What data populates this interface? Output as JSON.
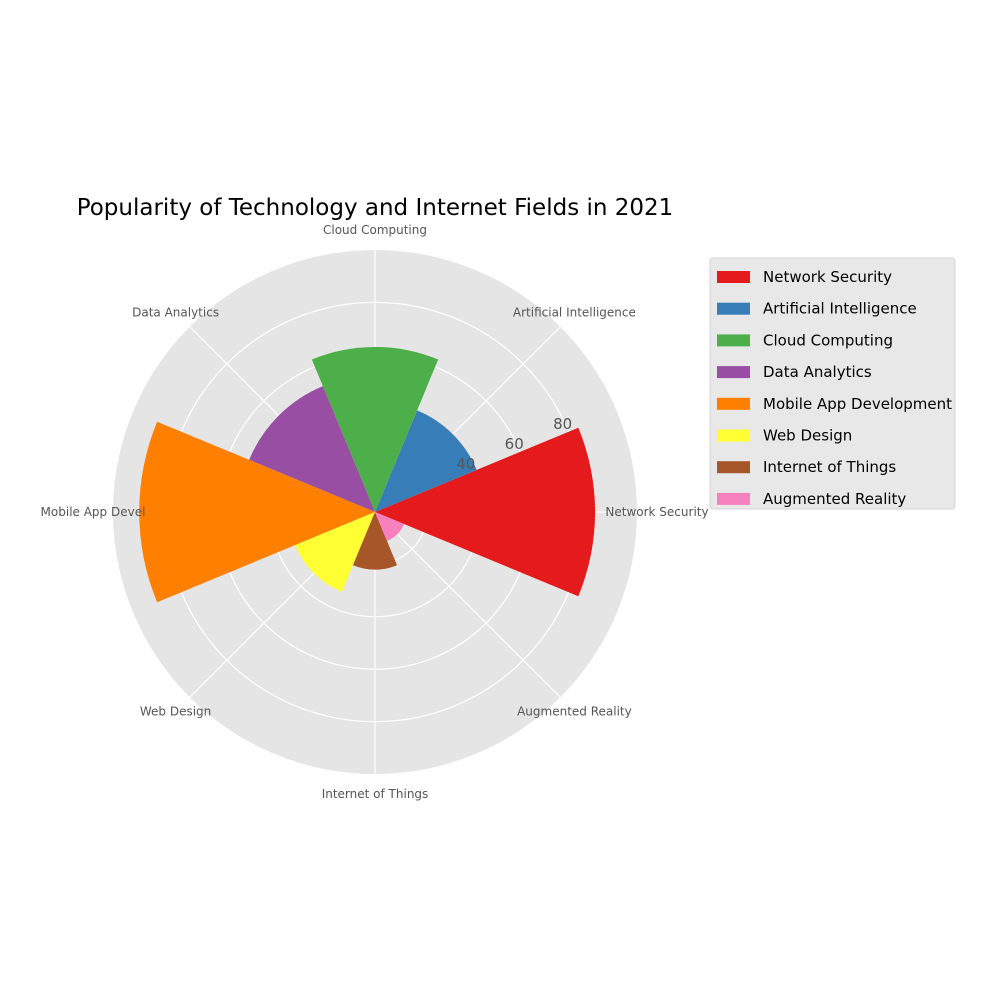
{
  "chart_data": {
    "type": "polar-bar",
    "title": "Popularity of Technology and Internet Fields in 2021",
    "categories": [
      "Network Security",
      "Artificial Intelligence",
      "Cloud Computing",
      "Data Analytics",
      "Mobile App Development",
      "Web Design",
      "Internet of Things",
      "Augmented Reality"
    ],
    "category_labels": [
      "Network Security",
      "Artificial Intelligence",
      "Cloud Computing",
      "Data Analytics",
      "Mobile App Devel",
      "Web Design",
      "Internet of Things",
      "Augmented Reality"
    ],
    "values": [
      84,
      42,
      63,
      52,
      90,
      33,
      22,
      12
    ],
    "colors": [
      "#e41a1c",
      "#377eb8",
      "#4daf4a",
      "#984ea3",
      "#ff7f00",
      "#ffff33",
      "#a65628",
      "#f781bf"
    ],
    "rlim": [
      0,
      100
    ],
    "rticks": [
      40,
      60,
      80
    ],
    "grid": true,
    "legend": {
      "placement": "right",
      "entries": [
        "Network Security",
        "Artificial Intelligence",
        "Cloud Computing",
        "Data Analytics",
        "Mobile App Development",
        "Web Design",
        "Internet of Things",
        "Augmented Reality"
      ]
    }
  }
}
